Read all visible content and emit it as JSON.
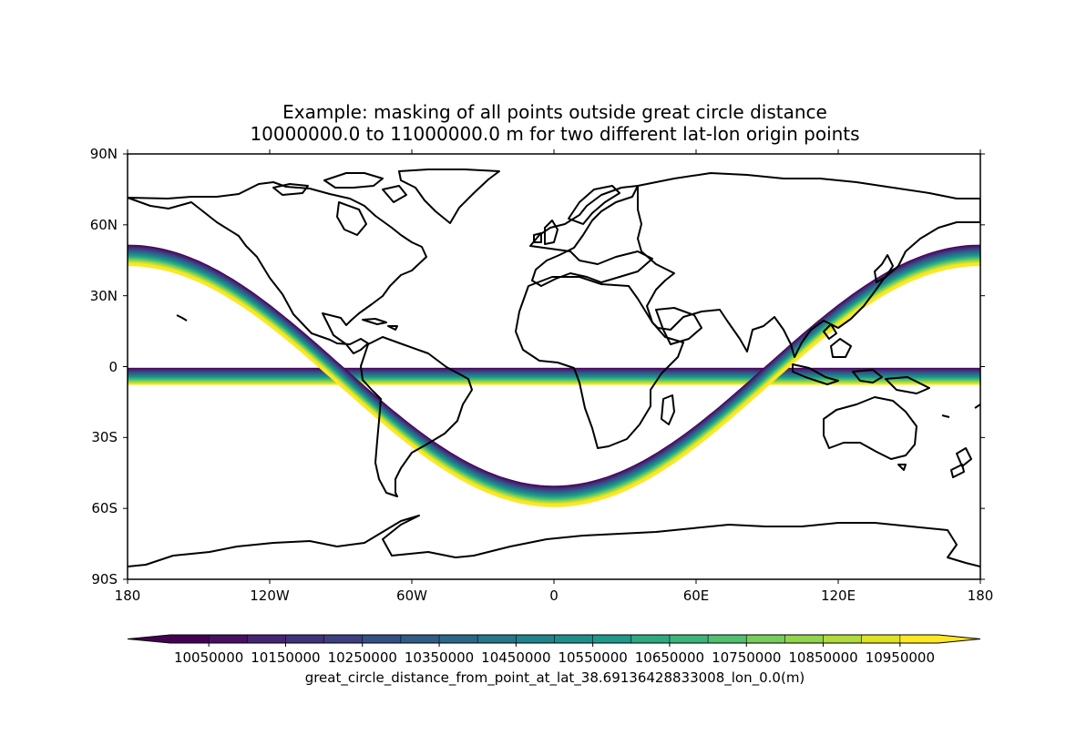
{
  "title": {
    "line1": "Example: masking of all points outside great circle distance",
    "line2": "10000000.0 to 11000000.0 m for two different lat-lon origin points"
  },
  "map": {
    "projection": "PlateCarree",
    "lon_range": [
      -180,
      180
    ],
    "lat_range": [
      -90,
      90
    ],
    "coastlines": true
  },
  "axes": {
    "lat_ticks": [
      {
        "value": 90,
        "label": "90N"
      },
      {
        "value": 60,
        "label": "60N"
      },
      {
        "value": 30,
        "label": "30N"
      },
      {
        "value": 0,
        "label": "0"
      },
      {
        "value": -30,
        "label": "30S"
      },
      {
        "value": -60,
        "label": "60S"
      },
      {
        "value": -90,
        "label": "90S"
      }
    ],
    "lon_ticks": [
      {
        "value": -180,
        "label": "180"
      },
      {
        "value": -120,
        "label": "120W"
      },
      {
        "value": -60,
        "label": "60W"
      },
      {
        "value": 0,
        "label": "0"
      },
      {
        "value": 60,
        "label": "60E"
      },
      {
        "value": 120,
        "label": "120E"
      },
      {
        "value": 180,
        "label": "180"
      }
    ]
  },
  "chart_data": {
    "type": "heatmap",
    "field": "great circle distance (m), masked outside 10000000.0–11000000.0",
    "band_range": [
      10000000.0,
      11000000.0
    ],
    "features": [
      {
        "name": "equatorial band",
        "lat_top": -0.5,
        "lat_bottom": -7.5
      },
      {
        "name": "sinusoidal band",
        "peak_lat": 51.0,
        "trough_lat": -51.0,
        "trough_lon": 0,
        "band_width_deg": 8
      }
    ],
    "colorbar": {
      "extend": "both",
      "levels": [
        10000000,
        10050000,
        10100000,
        10150000,
        10200000,
        10250000,
        10300000,
        10350000,
        10400000,
        10450000,
        10500000,
        10550000,
        10600000,
        10650000,
        10700000,
        10750000,
        10800000,
        10850000,
        10900000,
        10950000,
        11000000
      ],
      "tick_labels": [
        "10050000",
        "10150000",
        "10250000",
        "10350000",
        "10450000",
        "10550000",
        "10650000",
        "10750000",
        "10850000",
        "10950000"
      ],
      "tick_values": [
        10050000,
        10150000,
        10250000,
        10350000,
        10450000,
        10550000,
        10650000,
        10750000,
        10850000,
        10950000
      ],
      "label": "great_circle_distance_from_point_at_lat_38.69136428833008_lon_0.0(m)",
      "colors": [
        "#440154",
        "#46085c",
        "#471063",
        "#481769",
        "#471e6f",
        "#462573",
        "#442b77",
        "#42327a",
        "#3f387d",
        "#3c3f80",
        "#3a4582",
        "#374b84",
        "#345185",
        "#325786",
        "#2f5d87",
        "#2d6288",
        "#2b6888",
        "#296d89",
        "#27738a",
        "#25788a",
        "#237e8b",
        "#21838b",
        "#1f898b",
        "#1e8e8b",
        "#1e948a",
        "#1f9989",
        "#229f87",
        "#27a485",
        "#2daa82",
        "#34af7e",
        "#3db47a",
        "#47b975",
        "#52be70",
        "#5ec36a",
        "#6ac864",
        "#77cc5d",
        "#85d055",
        "#93d44c",
        "#a2d843",
        "#b0db3b",
        "#bfdf32",
        "#cee12a",
        "#dde324",
        "#ebe620",
        "#fde725"
      ]
    }
  }
}
